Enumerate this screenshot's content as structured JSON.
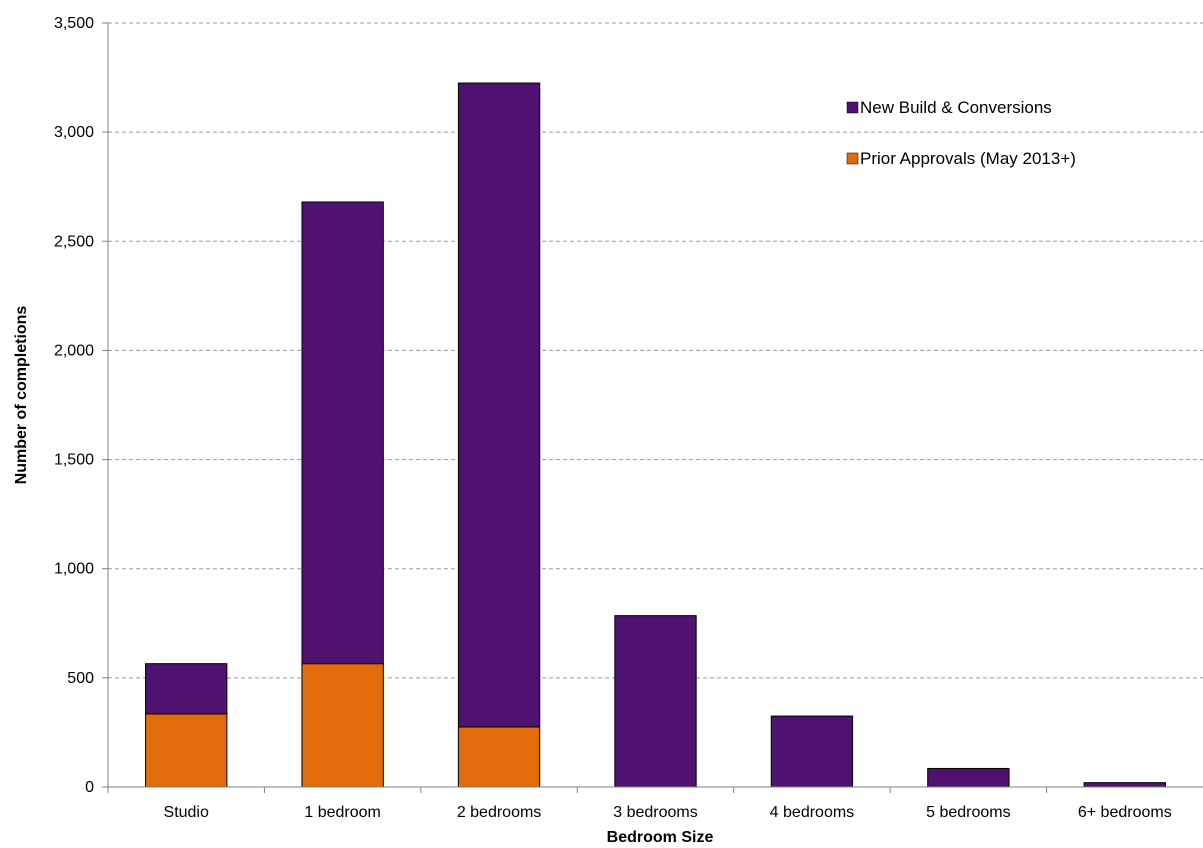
{
  "chart_data": {
    "type": "bar",
    "stacked": true,
    "categories": [
      "Studio",
      "1 bedroom",
      "2 bedrooms",
      "3 bedrooms",
      "4 bedrooms",
      "5 bedrooms",
      "6+ bedrooms"
    ],
    "series": [
      {
        "name": "Prior Approvals (May 2013+)",
        "color": "#e36c0a",
        "values": [
          335,
          565,
          275,
          0,
          0,
          0,
          0
        ]
      },
      {
        "name": "New Build & Conversions",
        "color": "#4f1270",
        "values": [
          230,
          2115,
          2950,
          785,
          325,
          85,
          20
        ]
      }
    ],
    "xlabel": "Bedroom Size",
    "ylabel": "Number of completions",
    "ylim": [
      0,
      3500
    ],
    "yticks": [
      0,
      500,
      1000,
      1500,
      2000,
      2500,
      3000,
      3500
    ],
    "ytick_labels": [
      "0",
      "500",
      "1,000",
      "1,500",
      "2,000",
      "2,500",
      "3,000",
      "3,500"
    ],
    "grid": true,
    "legend_position": "top-right",
    "legend_order": [
      "New Build & Conversions",
      "Prior Approvals (May 2013+)"
    ]
  }
}
